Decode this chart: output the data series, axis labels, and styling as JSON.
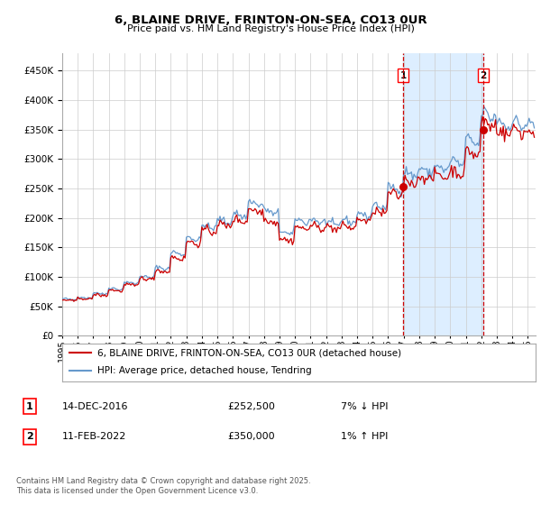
{
  "title": "6, BLAINE DRIVE, FRINTON-ON-SEA, CO13 0UR",
  "subtitle": "Price paid vs. HM Land Registry's House Price Index (HPI)",
  "legend_line1": "6, BLAINE DRIVE, FRINTON-ON-SEA, CO13 0UR (detached house)",
  "legend_line2": "HPI: Average price, detached house, Tendring",
  "annotation1_label": "1",
  "annotation1_date": "14-DEC-2016",
  "annotation1_price": "£252,500",
  "annotation1_hpi": "7% ↓ HPI",
  "annotation2_label": "2",
  "annotation2_date": "11-FEB-2022",
  "annotation2_price": "£350,000",
  "annotation2_hpi": "1% ↑ HPI",
  "footer": "Contains HM Land Registry data © Crown copyright and database right 2025.\nThis data is licensed under the Open Government Licence v3.0.",
  "hpi_color": "#6699cc",
  "price_color": "#cc0000",
  "point_color": "#cc0000",
  "vline_color": "#cc0000",
  "shade_color": "#ddeeff",
  "grid_color": "#cccccc",
  "bg_color": "#ffffff",
  "ylim": [
    0,
    480000
  ],
  "yticks": [
    0,
    50000,
    100000,
    150000,
    200000,
    250000,
    300000,
    350000,
    400000,
    450000
  ],
  "xlim_start": 1995.0,
  "xlim_end": 2025.5,
  "vline1_x": 2016.96,
  "vline2_x": 2022.12,
  "point1_x": 2016.96,
  "point1_y": 252500,
  "point2_x": 2022.12,
  "point2_y": 350000
}
